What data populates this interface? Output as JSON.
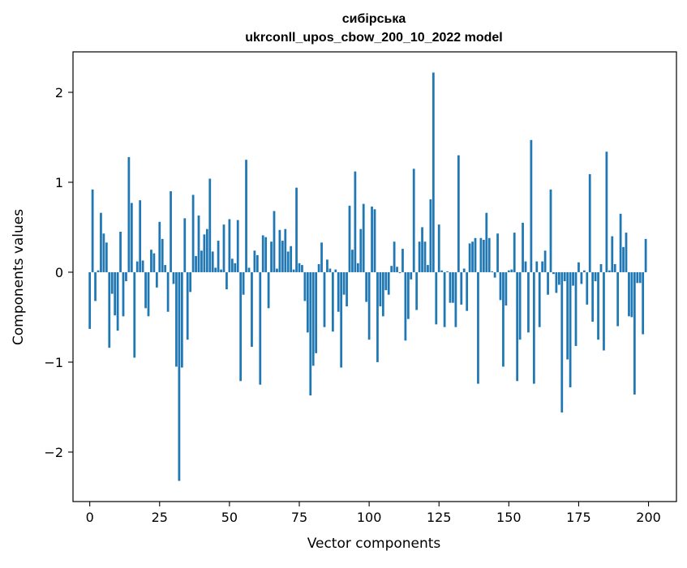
{
  "chart_data": {
    "type": "bar",
    "title": [
      "сибірська",
      "ukrconll_upos_cbow_200_10_2022 model"
    ],
    "xlabel": "Vector components",
    "ylabel": "Components values",
    "xlim": [
      -6,
      210
    ],
    "ylim": [
      -2.55,
      2.45
    ],
    "xticks": [
      0,
      25,
      50,
      75,
      100,
      125,
      150,
      175,
      200
    ],
    "yticks": [
      -2,
      -1,
      0,
      1,
      2
    ],
    "xtick_labels": [
      "0",
      "25",
      "50",
      "75",
      "100",
      "125",
      "150",
      "175",
      "200"
    ],
    "ytick_labels": [
      "−2",
      "−1",
      "0",
      "1",
      "2"
    ],
    "grid": false,
    "bar_color": "#1f77b4",
    "x": [
      0,
      1,
      2,
      3,
      4,
      5,
      6,
      7,
      8,
      9,
      10,
      11,
      12,
      13,
      14,
      15,
      16,
      17,
      18,
      19,
      20,
      21,
      22,
      23,
      24,
      25,
      26,
      27,
      28,
      29,
      30,
      31,
      32,
      33,
      34,
      35,
      36,
      37,
      38,
      39,
      40,
      41,
      42,
      43,
      44,
      45,
      46,
      47,
      48,
      49,
      50,
      51,
      52,
      53,
      54,
      55,
      56,
      57,
      58,
      59,
      60,
      61,
      62,
      63,
      64,
      65,
      66,
      67,
      68,
      69,
      70,
      71,
      72,
      73,
      74,
      75,
      76,
      77,
      78,
      79,
      80,
      81,
      82,
      83,
      84,
      85,
      86,
      87,
      88,
      89,
      90,
      91,
      92,
      93,
      94,
      95,
      96,
      97,
      98,
      99,
      100,
      101,
      102,
      103,
      104,
      105,
      106,
      107,
      108,
      109,
      110,
      111,
      112,
      113,
      114,
      115,
      116,
      117,
      118,
      119,
      120,
      121,
      122,
      123,
      124,
      125,
      126,
      127,
      128,
      129,
      130,
      131,
      132,
      133,
      134,
      135,
      136,
      137,
      138,
      139,
      140,
      141,
      142,
      143,
      144,
      145,
      146,
      147,
      148,
      149,
      150,
      151,
      152,
      153,
      154,
      155,
      156,
      157,
      158,
      159,
      160,
      161,
      162,
      163,
      164,
      165,
      166,
      167,
      168,
      169,
      170,
      171,
      172,
      173,
      174,
      175,
      176,
      177,
      178,
      179,
      180,
      181,
      182,
      183,
      184,
      185,
      186,
      187,
      188,
      189,
      190,
      191,
      192,
      193,
      194,
      195,
      196,
      197,
      198,
      199
    ],
    "values": [
      -0.63,
      0.92,
      -0.32,
      0.02,
      0.66,
      0.43,
      0.33,
      -0.84,
      -0.24,
      -0.48,
      -0.65,
      0.45,
      -0.49,
      -0.1,
      1.28,
      0.77,
      -0.95,
      0.12,
      0.8,
      0.13,
      -0.4,
      -0.49,
      0.25,
      0.21,
      -0.17,
      0.56,
      0.37,
      0.08,
      -0.44,
      0.9,
      -0.13,
      -1.05,
      -2.32,
      -1.06,
      0.6,
      -0.75,
      -0.22,
      0.86,
      0.18,
      0.63,
      0.24,
      0.42,
      0.48,
      1.04,
      0.23,
      0.05,
      0.35,
      0.03,
      0.53,
      -0.19,
      0.59,
      0.15,
      0.1,
      0.58,
      -1.21,
      -0.25,
      1.25,
      0.05,
      -0.83,
      0.24,
      0.19,
      -1.25,
      0.41,
      0.39,
      -0.4,
      0.34,
      0.68,
      0.04,
      0.47,
      0.35,
      0.48,
      0.23,
      0.29,
      0.03,
      0.94,
      0.1,
      0.08,
      -0.32,
      -0.67,
      -1.37,
      -1.04,
      -0.9,
      0.09,
      0.33,
      -0.61,
      0.14,
      0.04,
      -0.66,
      0.03,
      -0.44,
      -1.06,
      -0.25,
      -0.38,
      0.74,
      0.25,
      1.12,
      0.1,
      0.48,
      0.76,
      -0.33,
      -0.75,
      0.73,
      0.7,
      -1.0,
      -0.38,
      -0.49,
      -0.2,
      -0.25,
      0.07,
      0.34,
      0.06,
      -0.01,
      0.26,
      -0.76,
      -0.52,
      -0.08,
      1.15,
      -0.42,
      0.34,
      0.5,
      0.34,
      0.08,
      0.81,
      2.22,
      -0.58,
      0.53,
      0.02,
      -0.61,
      0.01,
      -0.34,
      -0.34,
      -0.61,
      1.3,
      -0.36,
      0.04,
      -0.43,
      0.32,
      0.34,
      0.38,
      -1.24,
      0.38,
      0.36,
      0.66,
      0.38,
      0.01,
      -0.06,
      0.43,
      -0.31,
      -1.05,
      -0.37,
      0.02,
      0.03,
      0.44,
      -1.21,
      -0.75,
      0.55,
      0.12,
      -0.67,
      1.47,
      -1.24,
      0.12,
      -0.61,
      0.12,
      0.24,
      -0.25,
      0.92,
      -0.02,
      -0.23,
      -0.14,
      -1.56,
      -0.1,
      -0.97,
      -1.28,
      -0.15,
      -0.82,
      0.11,
      -0.13,
      0.02,
      -0.36,
      1.09,
      -0.55,
      -0.1,
      -0.75,
      0.09,
      -0.87,
      1.34,
      0.02,
      0.4,
      0.09,
      -0.6,
      0.65,
      0.28,
      0.44,
      -0.49,
      -0.5,
      -1.36,
      -0.12,
      -0.12,
      -0.69,
      0.37
    ]
  }
}
